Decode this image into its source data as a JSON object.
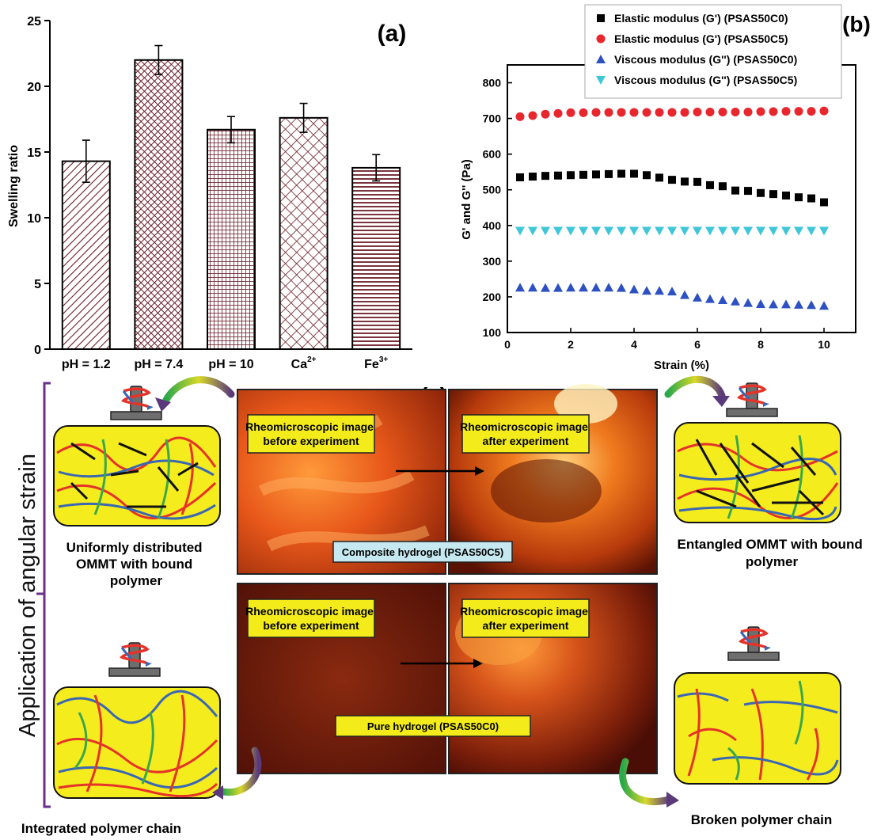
{
  "chart_data": [
    {
      "panel": "(a)",
      "type": "bar",
      "ylabel": "Swelling ratio",
      "categories": [
        "pH = 1.2",
        "pH = 7.4",
        "pH = 10",
        "Ca",
        "Fe"
      ],
      "category_superscripts": [
        "",
        "",
        "",
        "2+",
        "3+"
      ],
      "values": [
        14.3,
        22.0,
        16.7,
        17.6,
        13.8
      ],
      "errors": [
        1.6,
        1.1,
        1.0,
        1.1,
        1.0
      ],
      "ylim": [
        0,
        25
      ],
      "yticks": [
        "0",
        "5",
        "10",
        "15",
        "20",
        "25"
      ],
      "bar_fill": "#ffffff",
      "hatch_color": "#6b1d27",
      "hatches": [
        "diagonal",
        "crosshatch",
        "fine-crosshatch",
        "diamond",
        "horizontal"
      ]
    },
    {
      "panel": "(b)",
      "type": "scatter",
      "xlabel": "Strain (%)",
      "ylabel": "G' and G'' (Pa)",
      "xlim": [
        0,
        11
      ],
      "ylim": [
        100,
        850
      ],
      "xticks": [
        "0",
        "2",
        "4",
        "6",
        "8",
        "10"
      ],
      "yticks": [
        "100",
        "200",
        "300",
        "400",
        "500",
        "600",
        "700",
        "800"
      ],
      "legend_position": "top-right",
      "x": [
        0.4,
        0.8,
        1.2,
        1.6,
        2.0,
        2.4,
        2.8,
        3.2,
        3.6,
        4.0,
        4.4,
        4.8,
        5.2,
        5.6,
        6.0,
        6.4,
        6.8,
        7.2,
        7.6,
        8.0,
        8.4,
        8.8,
        9.2,
        9.6,
        10.0
      ],
      "series": [
        {
          "name": "Elastic modulus (G') (PSAS50C0)",
          "marker": "square",
          "color": "#000000",
          "values": [
            535,
            537,
            539,
            540,
            541,
            542,
            543,
            544,
            545,
            545,
            541,
            534,
            528,
            523,
            522,
            513,
            510,
            498,
            497,
            491,
            488,
            484,
            479,
            476,
            465
          ]
        },
        {
          "name": "Elastic modulus (G') (PSAS50C5)",
          "marker": "circle",
          "color": "#e8262d",
          "values": [
            705,
            708,
            712,
            714,
            716,
            716,
            717,
            717,
            717,
            717,
            717,
            717,
            717,
            717,
            718,
            718,
            718,
            718,
            718,
            719,
            719,
            720,
            720,
            720,
            721
          ]
        },
        {
          "name": "Viscous modulus (G'') (PSAS50C0)",
          "marker": "triangle-up",
          "color": "#2d51c2",
          "values": [
            226,
            226,
            225,
            225,
            226,
            226,
            226,
            226,
            225,
            221,
            217,
            217,
            215,
            205,
            198,
            194,
            191,
            187,
            183,
            180,
            179,
            179,
            178,
            177,
            175
          ]
        },
        {
          "name": "Viscous modulus (G'') (PSAS50C5)",
          "marker": "triangle-down",
          "color": "#3fc7d9",
          "values": [
            385,
            385,
            385,
            385,
            385,
            385,
            385,
            385,
            385,
            385,
            385,
            385,
            385,
            385,
            385,
            385,
            385,
            385,
            385,
            385,
            385,
            385,
            385,
            385,
            385
          ]
        }
      ]
    }
  ],
  "schematic": {
    "panel_label": "(c)",
    "side_label": "Application of angular strain",
    "micro_before": "Rheomicroscopic image\nbefore experiment",
    "micro_after": "Rheomicroscopic image\nafter experiment",
    "composite_caption": "Composite hydrogel (PSAS50C5)",
    "pure_caption": "Pure hydrogel (PSAS50C0)",
    "caption_uniform": "Uniformly distributed\nOMMT with bound\npolymer",
    "caption_entangled": "Entangled OMMT with bound\npolymer",
    "caption_integrated": "Integrated polymer chain",
    "caption_broken": "Broken polymer chain"
  },
  "colors": {
    "box_fill": "#f5ec1e",
    "chain_red": "#e5332a",
    "chain_blue": "#3a67b3",
    "chain_green": "#3aa84a",
    "rod": "#111111",
    "label_box": "#f4ec1a",
    "caption_box": "#c6e8f0",
    "bracket": "#6a2f8a"
  }
}
